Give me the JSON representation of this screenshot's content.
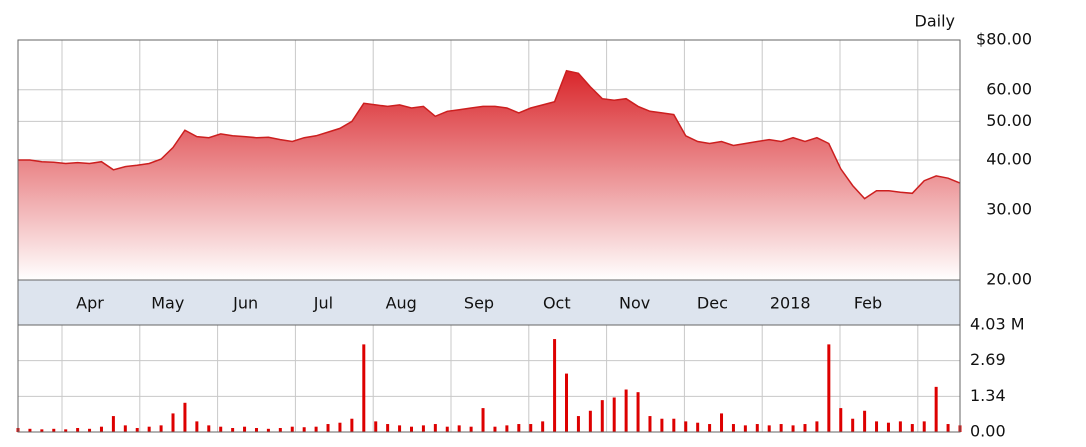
{
  "chart_data": [
    {
      "type": "area",
      "label": "Daily",
      "log_scale": true,
      "grid": true,
      "color": "#cc1f1f",
      "month_labels": [
        "Apr",
        "May",
        "Jun",
        "Jul",
        "Aug",
        "Sep",
        "Oct",
        "Nov",
        "Dec",
        "2018",
        "Feb"
      ],
      "ylim": [
        20,
        80
      ],
      "yticks": [
        {
          "value": 80,
          "label": "$80.00"
        },
        {
          "value": 60,
          "label": "60.00"
        },
        {
          "value": 50,
          "label": "50.00"
        },
        {
          "value": 40,
          "label": "40.00"
        },
        {
          "value": 30,
          "label": "30.00"
        },
        {
          "value": 20,
          "label": "20.00"
        }
      ],
      "series": [
        {
          "values": [
            40,
            40,
            39.6,
            39.5,
            39.2,
            39.4,
            39.2,
            39.6,
            37.8,
            38.5,
            38.8,
            39.2,
            40.2,
            43,
            47.5,
            45.8,
            45.5,
            46.5,
            46,
            45.8,
            45.5,
            45.6,
            45,
            44.5,
            45.5,
            46,
            47,
            48,
            50,
            55.5,
            55,
            54.5,
            55,
            54,
            54.5,
            51.5,
            53,
            53.5,
            54,
            54.5,
            54.5,
            54,
            52.5,
            54,
            55,
            56,
            67,
            66,
            61,
            57,
            56.5,
            57,
            54.5,
            53,
            52.5,
            52,
            46,
            44.5,
            44,
            44.5,
            43.5,
            44,
            44.5,
            45,
            44.5,
            45.5,
            44.5,
            45.5,
            44,
            38,
            34.5,
            32,
            33.5,
            33.5,
            33.2,
            33,
            35.5,
            36.5,
            36,
            35
          ]
        }
      ]
    },
    {
      "type": "bar",
      "grid": true,
      "color": "#dd0000",
      "ylim": [
        0,
        4.03
      ],
      "yticks": [
        {
          "value": 4.03,
          "label": "4.03 M"
        },
        2.69,
        1.34,
        {
          "value": 0,
          "label": "0.00"
        }
      ],
      "values": [
        0.15,
        0.12,
        0.1,
        0.12,
        0.1,
        0.15,
        0.12,
        0.2,
        0.6,
        0.25,
        0.15,
        0.2,
        0.25,
        0.7,
        1.1,
        0.4,
        0.25,
        0.2,
        0.15,
        0.2,
        0.15,
        0.12,
        0.15,
        0.2,
        0.18,
        0.2,
        0.3,
        0.35,
        0.5,
        3.3,
        0.4,
        0.3,
        0.25,
        0.2,
        0.25,
        0.3,
        0.2,
        0.25,
        0.2,
        0.9,
        0.2,
        0.25,
        0.3,
        0.3,
        0.4,
        3.5,
        2.2,
        0.6,
        0.8,
        1.2,
        1.3,
        1.6,
        1.5,
        0.6,
        0.5,
        0.5,
        0.4,
        0.35,
        0.3,
        0.7,
        0.3,
        0.25,
        0.3,
        0.25,
        0.3,
        0.25,
        0.3,
        0.4,
        3.3,
        0.9,
        0.5,
        0.8,
        0.4,
        0.35,
        0.4,
        0.3,
        0.4,
        1.7,
        0.3,
        0.25
      ]
    }
  ]
}
